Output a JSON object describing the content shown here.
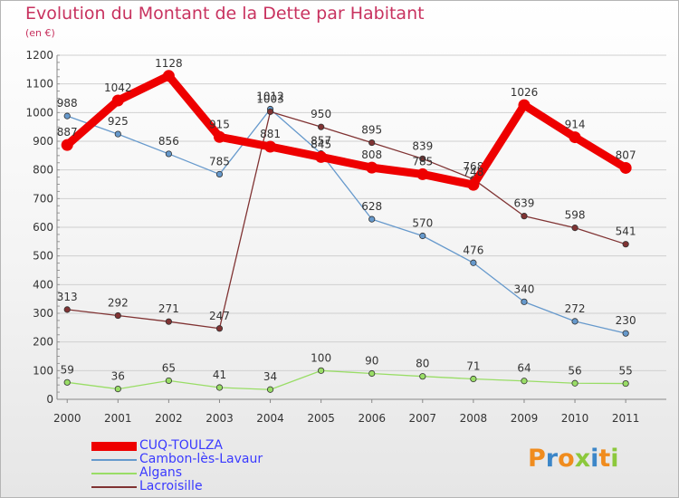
{
  "title": "Evolution du Montant de la Dette par Habitant",
  "subtitle": "(en €)",
  "brand": {
    "letters": [
      "P",
      "r",
      "o",
      "x",
      "i",
      "t",
      "i"
    ],
    "colors": [
      "#f08c1e",
      "#3c86c8",
      "#f08c1e",
      "#8cc83c",
      "#3c86c8",
      "#f08c1e",
      "#8cc83c"
    ]
  },
  "chart_data": {
    "type": "line",
    "x": [
      "2000",
      "2001",
      "2002",
      "2003",
      "2004",
      "2005",
      "2006",
      "2007",
      "2008",
      "2009",
      "2010",
      "2011"
    ],
    "ylim": [
      0,
      1200
    ],
    "yticks": [
      0,
      100,
      200,
      300,
      400,
      500,
      600,
      700,
      800,
      900,
      1000,
      1100,
      1200
    ],
    "grid": true,
    "legend_position": "bottom-left",
    "series": [
      {
        "name": "CUQ-TOULZA",
        "color": "#ee0000",
        "emphasis": true,
        "values": [
          887,
          1042,
          1128,
          915,
          881,
          845,
          808,
          785,
          748,
          1026,
          914,
          807
        ]
      },
      {
        "name": "Cambon-lès-Lavaur",
        "color": "#6699cc",
        "emphasis": false,
        "values": [
          988,
          925,
          856,
          785,
          1012,
          857,
          628,
          570,
          476,
          340,
          272,
          230
        ]
      },
      {
        "name": "Algans",
        "color": "#99dd66",
        "emphasis": false,
        "values": [
          59,
          36,
          65,
          41,
          34,
          100,
          90,
          80,
          71,
          64,
          56,
          55
        ]
      },
      {
        "name": "Lacroisille",
        "color": "#803333",
        "emphasis": false,
        "values": [
          313,
          292,
          271,
          247,
          1003,
          950,
          895,
          839,
          768,
          639,
          598,
          541
        ]
      }
    ]
  }
}
